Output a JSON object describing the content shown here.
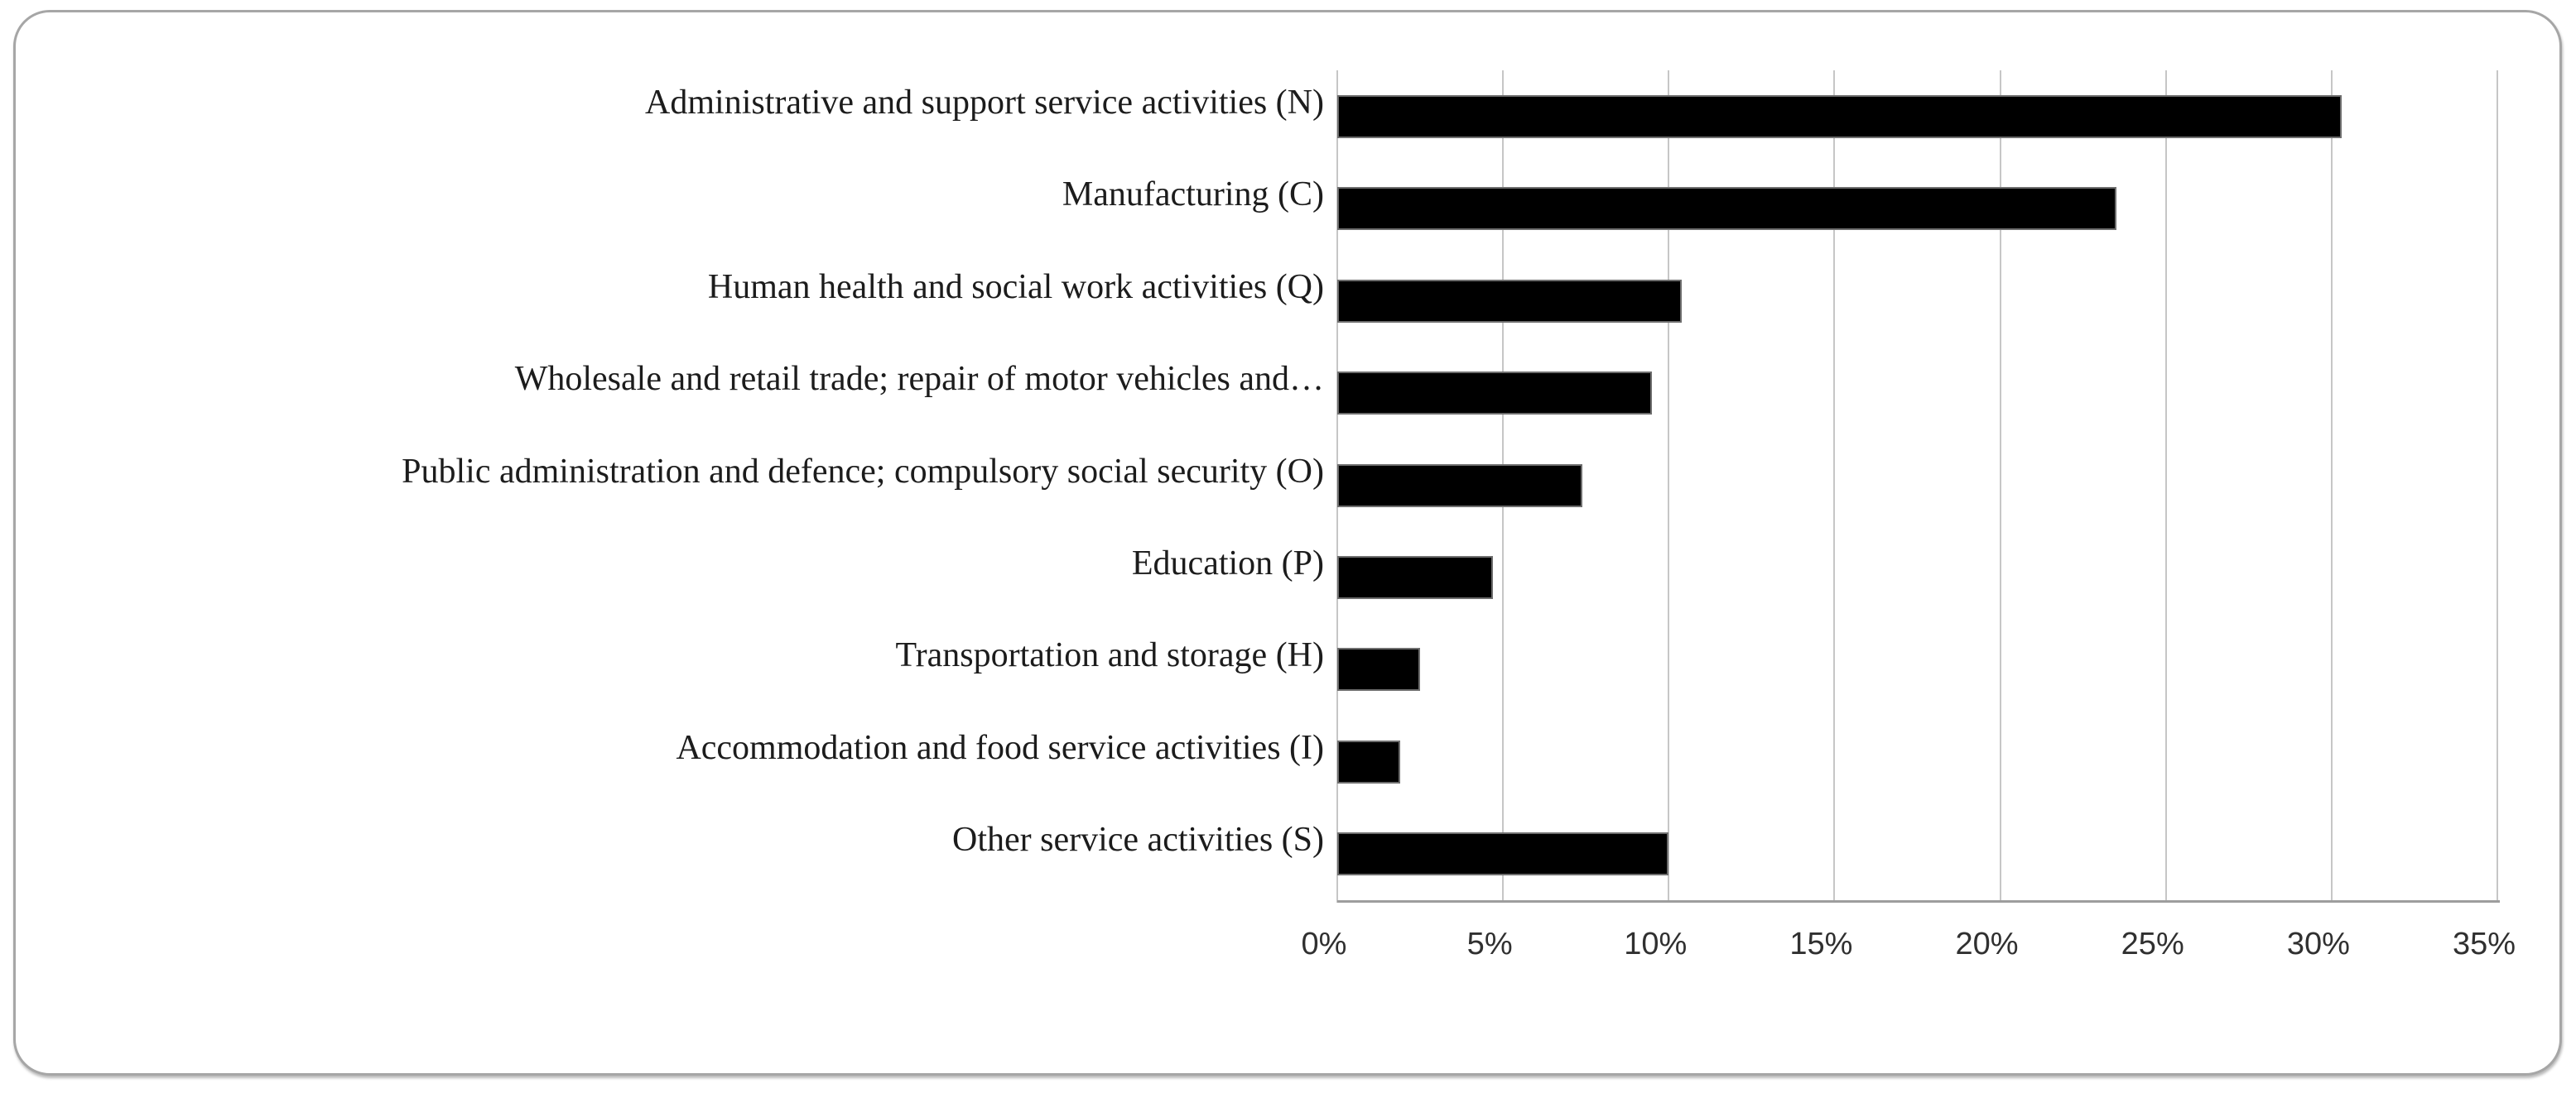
{
  "chart_data": {
    "type": "bar",
    "orientation": "horizontal",
    "title": "",
    "xlabel": "",
    "ylabel": "",
    "categories": [
      "Administrative and support service activities (N)",
      "Manufacturing (C)",
      "Human health and social work activities (Q)",
      "Wholesale and retail trade; repair of motor vehicles and…",
      "Public administration and defence; compulsory social security (O)",
      "Education (P)",
      "Transportation and storage (H)",
      "Accommodation and food service activities (I)",
      "Other service activities (S)"
    ],
    "values": [
      30.3,
      23.5,
      10.4,
      9.5,
      7.4,
      4.7,
      2.5,
      1.9,
      10.0
    ],
    "unit": "%",
    "xlim": [
      0,
      35
    ],
    "x_tick_step": 5,
    "x_tick_labels": [
      "0%",
      "5%",
      "10%",
      "15%",
      "20%",
      "25%",
      "30%",
      "35%"
    ],
    "grid": "vertical-gridlines-on",
    "legend": "none",
    "colors": {
      "bar_fill": "#000000",
      "bar_outline": "#6e6e6e",
      "gridline": "#c6c6c6",
      "axis_line": "#9d9d9d",
      "frame_border": "#a6a6a6",
      "label_text": "#1c1c1c",
      "tick_text": "#303030",
      "background": "#ffffff"
    }
  }
}
